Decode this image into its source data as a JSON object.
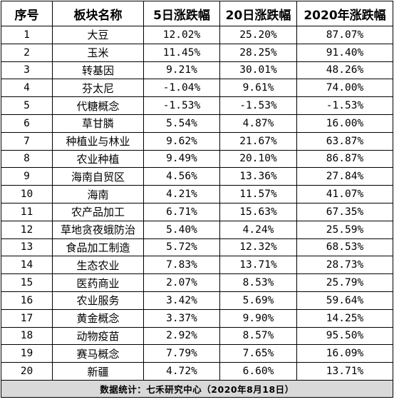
{
  "table": {
    "headers": [
      "序号",
      "板块名称",
      "5日涨跌幅",
      "20日涨跌幅",
      "2020年涨跌幅"
    ],
    "rows": [
      [
        "1",
        "大豆",
        "12.02%",
        "25.20%",
        "87.07%"
      ],
      [
        "2",
        "玉米",
        "11.45%",
        "28.25%",
        "91.40%"
      ],
      [
        "3",
        "转基因",
        "9.21%",
        "30.01%",
        "48.26%"
      ],
      [
        "4",
        "芬太尼",
        "-1.04%",
        "9.61%",
        "74.00%"
      ],
      [
        "5",
        "代糖概念",
        "-1.53%",
        "-1.53%",
        "-1.53%"
      ],
      [
        "6",
        "草甘膦",
        "5.54%",
        "4.87%",
        "16.00%"
      ],
      [
        "7",
        "种植业与林业",
        "9.62%",
        "21.67%",
        "63.87%"
      ],
      [
        "8",
        "农业种植",
        "9.49%",
        "20.10%",
        "86.87%"
      ],
      [
        "9",
        "海南自贸区",
        "4.56%",
        "13.36%",
        "27.84%"
      ],
      [
        "10",
        "海南",
        "4.21%",
        "11.57%",
        "41.07%"
      ],
      [
        "11",
        "农产品加工",
        "6.71%",
        "15.63%",
        "67.35%"
      ],
      [
        "12",
        "草地贪夜蛾防治",
        "5.40%",
        "4.24%",
        "25.59%"
      ],
      [
        "13",
        "食品加工制造",
        "5.72%",
        "12.32%",
        "68.53%"
      ],
      [
        "14",
        "生态农业",
        "7.83%",
        "13.71%",
        "28.73%"
      ],
      [
        "15",
        "医药商业",
        "2.07%",
        "8.53%",
        "25.79%"
      ],
      [
        "16",
        "农业服务",
        "3.42%",
        "5.69%",
        "59.64%"
      ],
      [
        "17",
        "黄金概念",
        "3.37%",
        "9.90%",
        "14.25%"
      ],
      [
        "18",
        "动物疫苗",
        "2.92%",
        "8.57%",
        "95.50%"
      ],
      [
        "19",
        "赛马概念",
        "7.79%",
        "7.65%",
        "16.09%"
      ],
      [
        "20",
        "新疆",
        "4.72%",
        "6.60%",
        "13.71%"
      ]
    ],
    "footer": "数据统计：七禾研究中心（2020年8月18日）"
  }
}
